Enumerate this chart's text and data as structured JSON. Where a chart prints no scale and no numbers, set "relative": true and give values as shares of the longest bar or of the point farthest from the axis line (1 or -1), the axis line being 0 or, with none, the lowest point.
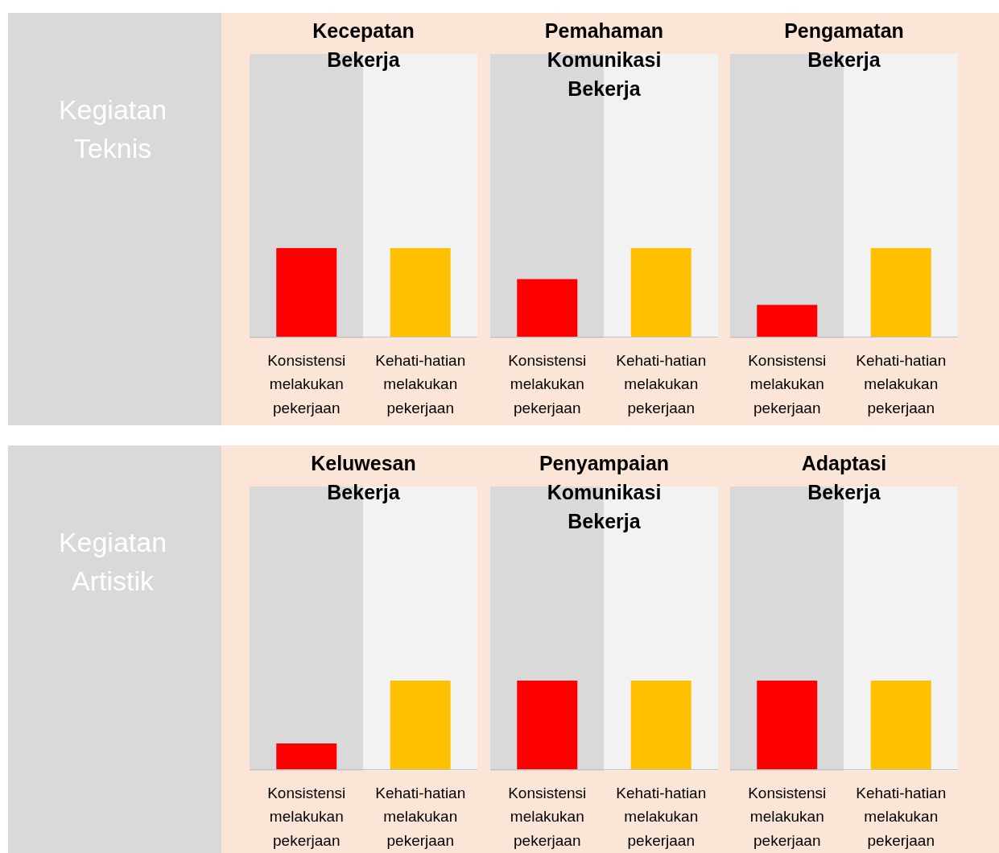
{
  "chart_data": [
    {
      "type": "bar",
      "title": "Kecepatan Bekerja",
      "categories": [
        "Konsistensi melakukan pekerjaan",
        "Kehati-hatian melakukan pekerjaan"
      ],
      "values": [
        1,
        1
      ],
      "colors": [
        "#ff0000",
        "#ffc000"
      ],
      "relative": true,
      "annotations": [
        "Kegiatan Teknis"
      ]
    },
    {
      "type": "bar",
      "title": "Pemahaman Komunikasi Bekerja",
      "categories": [
        "Konsistensi melakukan pekerjaan",
        "Kehati-hatian melakukan pekerjaan"
      ],
      "values": [
        0.65,
        1
      ],
      "colors": [
        "#ff0000",
        "#ffc000"
      ],
      "relative": true
    },
    {
      "type": "bar",
      "title": "Pengamatan Bekerja",
      "categories": [
        "Konsistensi melakukan pekerjaan",
        "Kehati-hatian melakukan pekerjaan"
      ],
      "values": [
        0.36,
        1
      ],
      "colors": [
        "#ff0000",
        "#ffc000"
      ],
      "relative": true
    },
    {
      "type": "bar",
      "title": "Keluwesan Bekerja",
      "categories": [
        "Konsistensi melakukan pekerjaan",
        "Kehati-hatian melakukan pekerjaan"
      ],
      "values": [
        0.29,
        1
      ],
      "colors": [
        "#ff0000",
        "#ffc000"
      ],
      "relative": true,
      "annotations": [
        "Kegiatan Artistik"
      ]
    },
    {
      "type": "bar",
      "title": "Penyampaian Komunikasi Bekerja",
      "categories": [
        "Konsistensi melakukan pekerjaan",
        "Kehati-hatian melakukan pekerjaan"
      ],
      "values": [
        1,
        1
      ],
      "colors": [
        "#ff0000",
        "#ffc000"
      ],
      "relative": true
    },
    {
      "type": "bar",
      "title": "Adaptasi Bekerja",
      "categories": [
        "Konsistensi melakukan pekerjaan",
        "Kehati-hatian melakukan pekerjaan"
      ],
      "values": [
        1,
        1
      ],
      "colors": [
        "#ff0000",
        "#ffc000"
      ],
      "relative": true
    }
  ]
}
